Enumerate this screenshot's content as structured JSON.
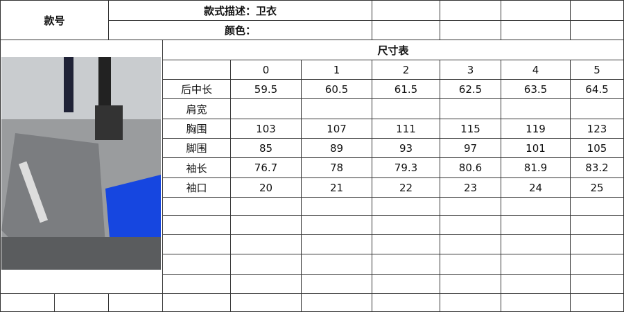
{
  "header": {
    "style_no_label": "款号",
    "style_desc_label": "款式描述：卫衣",
    "color_label": "颜色："
  },
  "size_table": {
    "title": "尺寸表",
    "sizes": [
      "0",
      "1",
      "2",
      "3",
      "4",
      "5"
    ],
    "rows": [
      {
        "label": "后中长",
        "values": [
          "59.5",
          "60.5",
          "61.5",
          "62.5",
          "63.5",
          "64.5"
        ]
      },
      {
        "label": "肩宽",
        "values": [
          "",
          "",
          "",
          "",
          "",
          ""
        ]
      },
      {
        "label": "胸围",
        "values": [
          "103",
          "107",
          "111",
          "115",
          "119",
          "123"
        ]
      },
      {
        "label": "脚围",
        "values": [
          "85",
          "89",
          "93",
          "97",
          "101",
          "105"
        ]
      },
      {
        "label": "袖长",
        "values": [
          "76.7",
          "78",
          "79.3",
          "80.6",
          "81.9",
          "83.2"
        ]
      },
      {
        "label": "袖口",
        "values": [
          "20",
          "21",
          "22",
          "23",
          "24",
          "25"
        ]
      }
    ]
  },
  "photo": {
    "icon": "product-photo-gray-sweatshirt"
  }
}
